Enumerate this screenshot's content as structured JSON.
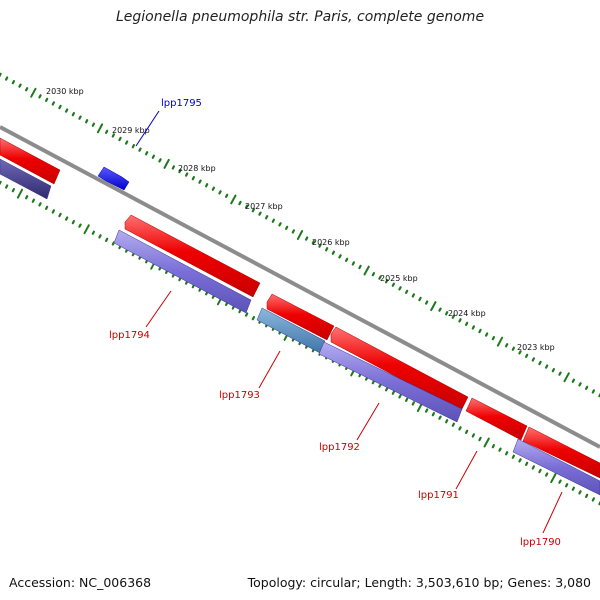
{
  "title": "Legionella pneumophila str. Paris, complete genome",
  "footer": {
    "accession": "Accession: NC_006368",
    "summary": "Topology: circular; Length: 3,503,610 bp; Genes: 3,080"
  },
  "ruler_ticks": [
    "2030 kbp",
    "2029 kbp",
    "2028 kbp",
    "2027 kbp",
    "2026 kbp",
    "2025 kbp",
    "2024 kbp",
    "2023 kbp"
  ],
  "gene_labels": [
    "lpp1795",
    "lpp1794",
    "lpp1793",
    "lpp1792",
    "lpp1791",
    "lpp1790"
  ],
  "colors": {
    "forward_cds": "#ee0000",
    "reverse_cds": "#7a6fd6",
    "dark_cds": "#3f3a86",
    "labeled_top_gene": "#1010ee",
    "steel_gene": "#4f86b8",
    "backbone": "#8c8c8c",
    "ticks": "#1c7a1c",
    "label_top": "#0000cc",
    "label_bottom": "#cc0000"
  }
}
